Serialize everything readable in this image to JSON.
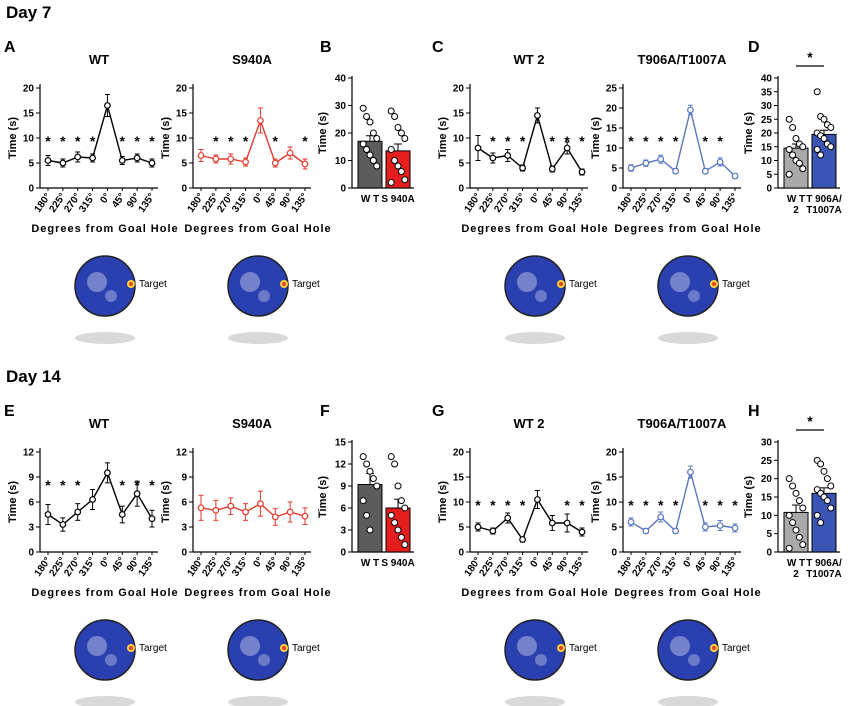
{
  "figure": {
    "sections": [
      {
        "title": "Day 7"
      },
      {
        "title": "Day 14"
      }
    ],
    "target_label": "Target",
    "heatmap_colors": {
      "arena": "#2a3fb0",
      "hot": "#ffd23a",
      "edge": "#222222",
      "shadow": "#cfcfcf"
    }
  },
  "colors": {
    "wt": "#000000",
    "s940a": "#e23a2e",
    "t906a": "#5a78bf",
    "bar_wt": "#5c5c5c",
    "bar_s940a": "#e51d1d",
    "bar_wt2": "#a9a9a9",
    "bar_t906a": "#3a55b4"
  },
  "chart_data": [
    {
      "id": "A1",
      "panel": "A",
      "type": "line",
      "title": "WT",
      "ylabel": "Time (s)",
      "xlabel": "Degrees from Goal Hole",
      "ylim": [
        0,
        20
      ],
      "yticks": [
        0,
        5,
        10,
        15,
        20
      ],
      "categories": [
        "180°",
        "225°",
        "270°",
        "315°",
        "0°",
        "45°",
        "90°",
        "135°"
      ],
      "values": [
        5.5,
        5.0,
        6.2,
        6.0,
        16.5,
        5.5,
        6.0,
        5.0
      ],
      "errors": [
        1.0,
        0.8,
        1.0,
        0.8,
        2.2,
        0.8,
        0.8,
        0.8
      ],
      "stars": [
        true,
        true,
        true,
        true,
        false,
        true,
        true,
        true
      ],
      "color_key": "wt"
    },
    {
      "id": "A2",
      "type": "line",
      "title": "S940A",
      "ylabel": "Time (s)",
      "xlabel": "Degrees from Goal Hole",
      "ylim": [
        0,
        20
      ],
      "yticks": [
        0,
        5,
        10,
        15,
        20
      ],
      "categories": [
        "180°",
        "225°",
        "270°",
        "315°",
        "0°",
        "45°",
        "90°",
        "135°"
      ],
      "values": [
        6.5,
        5.8,
        5.8,
        5.2,
        13.5,
        5.0,
        7.0,
        4.8
      ],
      "errors": [
        1.2,
        0.8,
        1.0,
        0.8,
        2.5,
        0.8,
        1.2,
        1.0
      ],
      "stars": [
        false,
        true,
        true,
        true,
        false,
        true,
        false,
        true
      ],
      "color_key": "s940a"
    },
    {
      "id": "B",
      "panel": "B",
      "type": "bar",
      "ylabel": "Time (s)",
      "ylim": [
        0,
        40
      ],
      "yticks": [
        0,
        10,
        20,
        30,
        40
      ],
      "categories": [
        "W T",
        "S 940A"
      ],
      "values": [
        17,
        13.5
      ],
      "errors": [
        2.0,
        2.5
      ],
      "points": [
        [
          29,
          26,
          24,
          20,
          18,
          16,
          14,
          12,
          10,
          8
        ],
        [
          28,
          26,
          22,
          20,
          18,
          14,
          10,
          8,
          6,
          3,
          2
        ]
      ],
      "color_keys": [
        "bar_wt",
        "bar_s940a"
      ]
    },
    {
      "id": "C1",
      "panel": "C",
      "type": "line",
      "title": "WT 2",
      "ylabel": "Time (s)",
      "xlabel": "Degrees from Goal Hole",
      "ylim": [
        0,
        20
      ],
      "yticks": [
        0,
        5,
        10,
        15,
        20
      ],
      "categories": [
        "180°",
        "225°",
        "270°",
        "315°",
        "0°",
        "45°",
        "90°",
        "135°"
      ],
      "values": [
        8.0,
        6.0,
        6.5,
        4.0,
        14.5,
        3.8,
        8.0,
        3.2
      ],
      "errors": [
        2.5,
        1.0,
        1.2,
        0.6,
        1.5,
        0.6,
        1.2,
        0.6
      ],
      "stars": [
        false,
        true,
        true,
        true,
        false,
        true,
        true,
        true
      ],
      "color_key": "wt"
    },
    {
      "id": "C2",
      "type": "line",
      "title": "T906A/T1007A",
      "ylabel": "Time (s)",
      "xlabel": "Degrees from Goal Hole",
      "ylim": [
        0,
        25
      ],
      "yticks": [
        0,
        5,
        10,
        15,
        20,
        25
      ],
      "categories": [
        "180°",
        "225°",
        "270°",
        "315°",
        "0°",
        "45°",
        "90°",
        "135°"
      ],
      "values": [
        5.0,
        6.2,
        7.2,
        4.2,
        19.5,
        4.2,
        6.5,
        3.0
      ],
      "errors": [
        0.8,
        0.8,
        1.0,
        0.6,
        1.2,
        0.6,
        1.0,
        0.6
      ],
      "stars": [
        true,
        true,
        true,
        true,
        false,
        true,
        true,
        false
      ],
      "color_key": "t906a"
    },
    {
      "id": "D",
      "panel": "D",
      "type": "bar",
      "ylabel": "Time (s)",
      "ylim": [
        0,
        40
      ],
      "yticks": [
        0,
        5,
        10,
        15,
        20,
        25,
        30,
        35,
        40
      ],
      "categories": [
        "W T 2",
        "T 906A/ T1007A"
      ],
      "values": [
        14.5,
        19.5
      ],
      "errors": [
        1.5,
        1.5
      ],
      "points": [
        [
          25,
          22,
          18,
          16,
          15,
          14,
          12,
          10,
          9,
          7,
          5
        ],
        [
          35,
          26,
          25,
          23,
          22,
          20,
          19,
          18,
          16,
          15,
          14,
          12
        ]
      ],
      "significance": "*",
      "color_keys": [
        "bar_wt2",
        "bar_t906a"
      ]
    },
    {
      "id": "E1",
      "panel": "E",
      "type": "line",
      "title": "WT",
      "ylabel": "Time (s)",
      "xlabel": "Degrees from Goal Hole",
      "ylim": [
        0,
        12
      ],
      "yticks": [
        0,
        3,
        6,
        9,
        12
      ],
      "categories": [
        "180°",
        "225°",
        "270°",
        "315°",
        "0°",
        "45°",
        "90°",
        "135°"
      ],
      "values": [
        4.5,
        3.3,
        4.8,
        6.3,
        9.5,
        4.5,
        7.0,
        4.0
      ],
      "errors": [
        1.2,
        0.8,
        1.0,
        1.2,
        1.2,
        1.0,
        1.5,
        1.0
      ],
      "stars": [
        true,
        true,
        true,
        false,
        false,
        true,
        true,
        true
      ],
      "color_key": "wt"
    },
    {
      "id": "E2",
      "type": "line",
      "title": "S940A",
      "ylabel": "Time (s)",
      "xlabel": "Degrees from Goal Hole",
      "ylim": [
        0,
        12
      ],
      "yticks": [
        0,
        3,
        6,
        9,
        12
      ],
      "categories": [
        "180°",
        "225°",
        "270°",
        "315°",
        "0°",
        "45°",
        "90°",
        "135°"
      ],
      "values": [
        5.3,
        5.0,
        5.5,
        4.8,
        5.8,
        4.2,
        4.8,
        4.3
      ],
      "errors": [
        1.5,
        1.2,
        1.0,
        1.0,
        1.5,
        1.0,
        1.2,
        1.0
      ],
      "stars": [
        false,
        false,
        false,
        false,
        false,
        false,
        false,
        false
      ],
      "color_key": "s940a"
    },
    {
      "id": "F",
      "panel": "F",
      "type": "bar",
      "ylabel": "Time (s)",
      "ylim": [
        0,
        15
      ],
      "yticks": [
        0,
        3,
        6,
        9,
        12,
        15
      ],
      "categories": [
        "W T",
        "S 940A"
      ],
      "values": [
        9.2,
        6.0
      ],
      "errors": [
        1.5,
        1.2
      ],
      "points": [
        [
          13,
          12,
          11,
          10,
          9,
          7,
          5,
          3
        ],
        [
          13,
          12,
          9,
          7,
          6,
          5,
          4,
          3,
          2,
          1
        ]
      ],
      "color_keys": [
        "bar_wt",
        "bar_s940a"
      ]
    },
    {
      "id": "G1",
      "panel": "G",
      "type": "line",
      "title": "WT 2",
      "ylabel": "Time (s)",
      "xlabel": "Degrees from Goal Hole",
      "ylim": [
        0,
        20
      ],
      "yticks": [
        0,
        5,
        10,
        15,
        20
      ],
      "categories": [
        "180°",
        "225°",
        "270°",
        "315°",
        "0°",
        "45°",
        "90°",
        "135°"
      ],
      "values": [
        5.0,
        4.2,
        6.8,
        2.5,
        10.5,
        5.8,
        5.8,
        4.0
      ],
      "errors": [
        0.8,
        0.6,
        1.0,
        0.5,
        1.8,
        1.5,
        1.8,
        0.8
      ],
      "stars": [
        true,
        true,
        true,
        true,
        false,
        false,
        true,
        true
      ],
      "color_key": "wt"
    },
    {
      "id": "G2",
      "type": "line",
      "title": "T906A/T1007A",
      "ylabel": "Time (s)",
      "xlabel": "Degrees from Goal Hole",
      "ylim": [
        0,
        20
      ],
      "yticks": [
        0,
        5,
        10,
        15,
        20
      ],
      "categories": [
        "180°",
        "225°",
        "270°",
        "315°",
        "0°",
        "45°",
        "90°",
        "135°"
      ],
      "values": [
        6.0,
        4.2,
        7.0,
        4.2,
        16.0,
        5.0,
        5.3,
        4.8
      ],
      "errors": [
        0.8,
        0.5,
        1.0,
        0.5,
        1.2,
        0.8,
        1.0,
        0.8
      ],
      "stars": [
        true,
        true,
        true,
        true,
        false,
        true,
        true,
        true
      ],
      "color_key": "t906a"
    },
    {
      "id": "H",
      "panel": "H",
      "type": "bar",
      "ylabel": "Time (s)",
      "ylim": [
        0,
        30
      ],
      "yticks": [
        0,
        5,
        10,
        15,
        20,
        25,
        30
      ],
      "categories": [
        "W T 2",
        "T 906A/ T1007A"
      ],
      "values": [
        10.8,
        16.0
      ],
      "errors": [
        2.0,
        1.5
      ],
      "points": [
        [
          20,
          18,
          16,
          14,
          12,
          10,
          8,
          6,
          4,
          2,
          1
        ],
        [
          25,
          24,
          22,
          20,
          18,
          17,
          16,
          15,
          14,
          12,
          10,
          8
        ]
      ],
      "significance": "*",
      "color_keys": [
        "bar_wt2",
        "bar_t906a"
      ]
    }
  ]
}
